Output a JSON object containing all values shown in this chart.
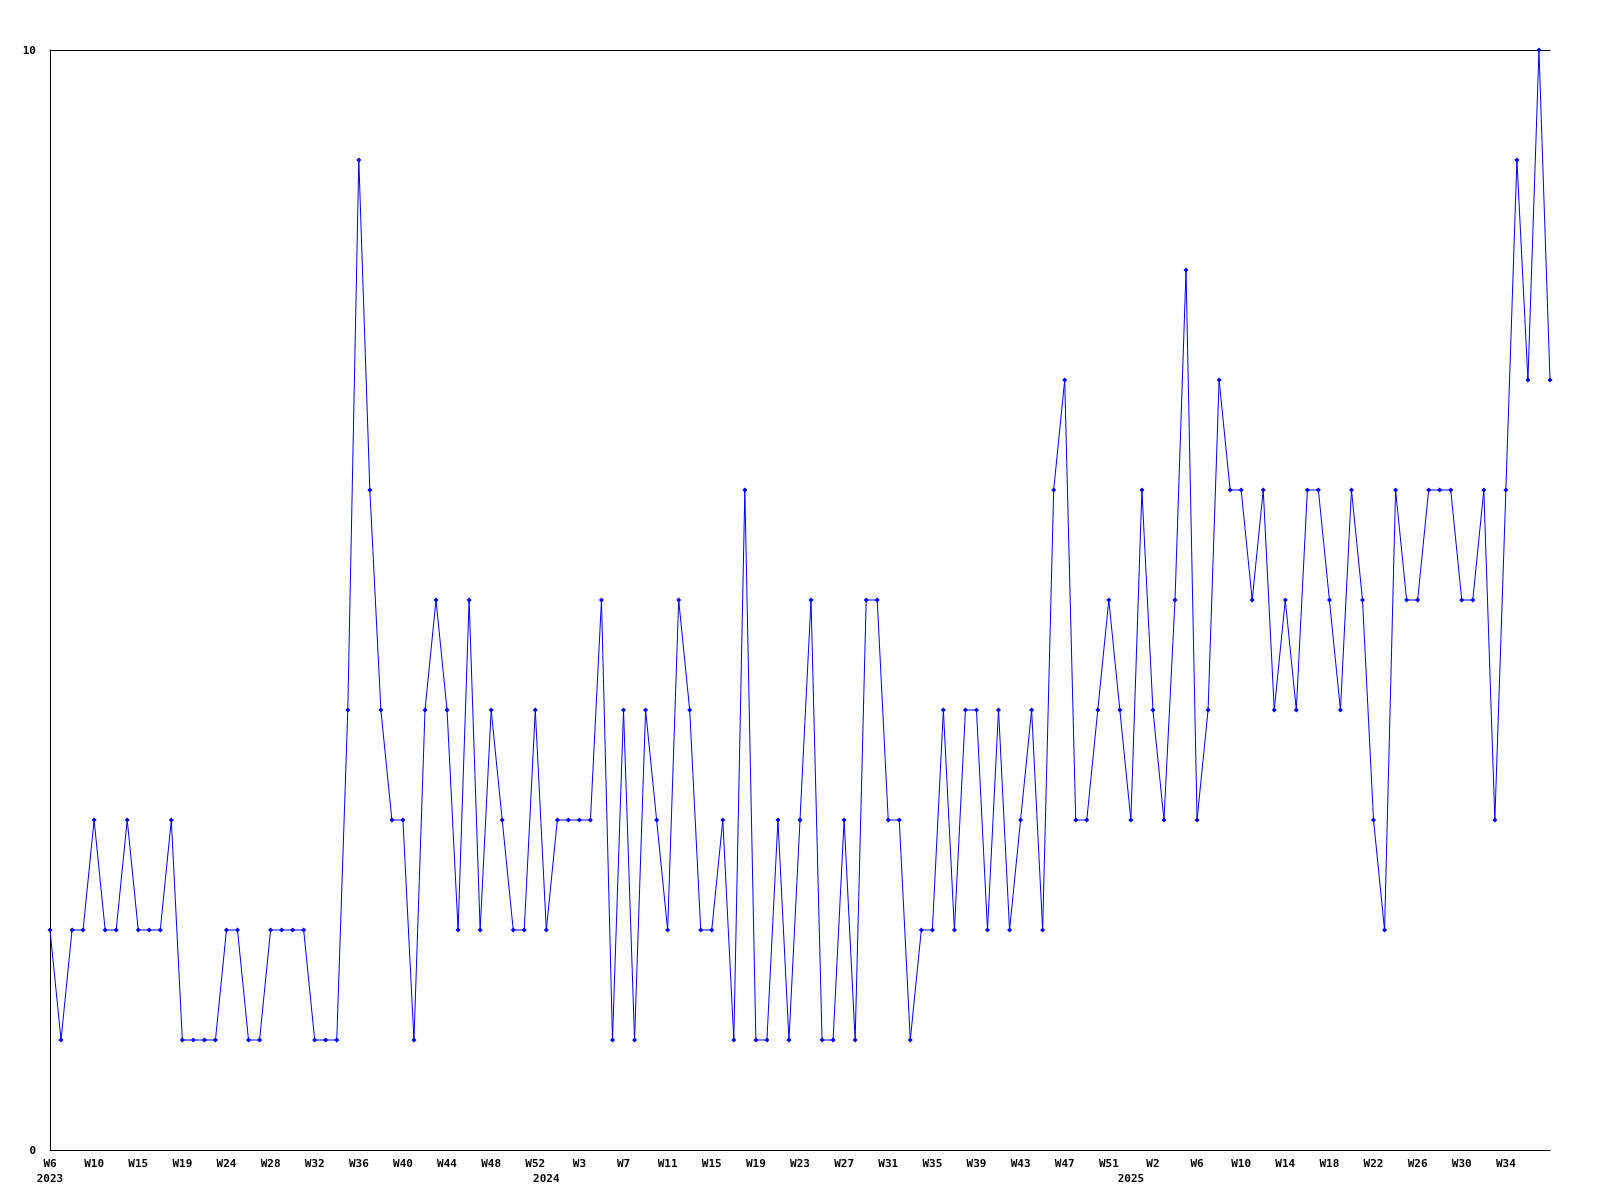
{
  "chart_data": {
    "type": "line",
    "categories": [
      "W6\n2023",
      null,
      null,
      null,
      "W10",
      null,
      null,
      null,
      "W15",
      null,
      null,
      null,
      "W19",
      null,
      null,
      null,
      "W24",
      null,
      null,
      null,
      "W28",
      null,
      null,
      null,
      "W32",
      null,
      null,
      null,
      "W36",
      null,
      null,
      null,
      "W40",
      null,
      null,
      null,
      "W44",
      null,
      null,
      null,
      "W48",
      null,
      null,
      null,
      "W52",
      "\n2024",
      null,
      null,
      "W3",
      null,
      null,
      null,
      "W7",
      null,
      null,
      null,
      "W11",
      null,
      null,
      null,
      "W15",
      null,
      null,
      null,
      "W19",
      null,
      null,
      null,
      "W23",
      null,
      null,
      null,
      "W27",
      null,
      null,
      null,
      "W31",
      null,
      null,
      null,
      "W35",
      null,
      null,
      null,
      "W39",
      null,
      null,
      null,
      "W43",
      null,
      null,
      null,
      "W47",
      null,
      null,
      null,
      "W51",
      null,
      "\n2025",
      null,
      "W2",
      null,
      null,
      null,
      "W6",
      null,
      null,
      null,
      "W10",
      null,
      null,
      null,
      "W14",
      null,
      null,
      null,
      "W18",
      null,
      null,
      null,
      "W22",
      null,
      null,
      null,
      "W26",
      null,
      null,
      null,
      "W30",
      null,
      null,
      null,
      "W34",
      null,
      null,
      null,
      null
    ],
    "series": [
      {
        "color": "#0000ff",
        "values": [
          2,
          1,
          2,
          2,
          3,
          2,
          2,
          3,
          2,
          2,
          2,
          3,
          1,
          1,
          1,
          1,
          2,
          2,
          1,
          1,
          2,
          2,
          2,
          2,
          1,
          1,
          1,
          4,
          9,
          6,
          4,
          3,
          3,
          1,
          4,
          5,
          4,
          2,
          5,
          2,
          4,
          3,
          2,
          2,
          4,
          2,
          3,
          3,
          3,
          3,
          5,
          1,
          4,
          1,
          4,
          3,
          2,
          5,
          4,
          2,
          2,
          3,
          1,
          6,
          1,
          1,
          3,
          1,
          3,
          5,
          1,
          1,
          3,
          1,
          5,
          5,
          3,
          3,
          1,
          2,
          2,
          4,
          2,
          4,
          4,
          2,
          4,
          2,
          3,
          4,
          2,
          6,
          7,
          3,
          3,
          4,
          5,
          4,
          3,
          6,
          4,
          3,
          5,
          8,
          3,
          4,
          7,
          6,
          6,
          5,
          6,
          4,
          5,
          4,
          6,
          6,
          5,
          4,
          6,
          5,
          3,
          2,
          6,
          5,
          5,
          6,
          6,
          6,
          5,
          5,
          6,
          3,
          6,
          9,
          7,
          10,
          7
        ]
      }
    ],
    "ylim": [
      0,
      10
    ],
    "yticks": [
      0,
      10
    ],
    "grid": false,
    "marker": "diamond",
    "line_style": "solid"
  }
}
